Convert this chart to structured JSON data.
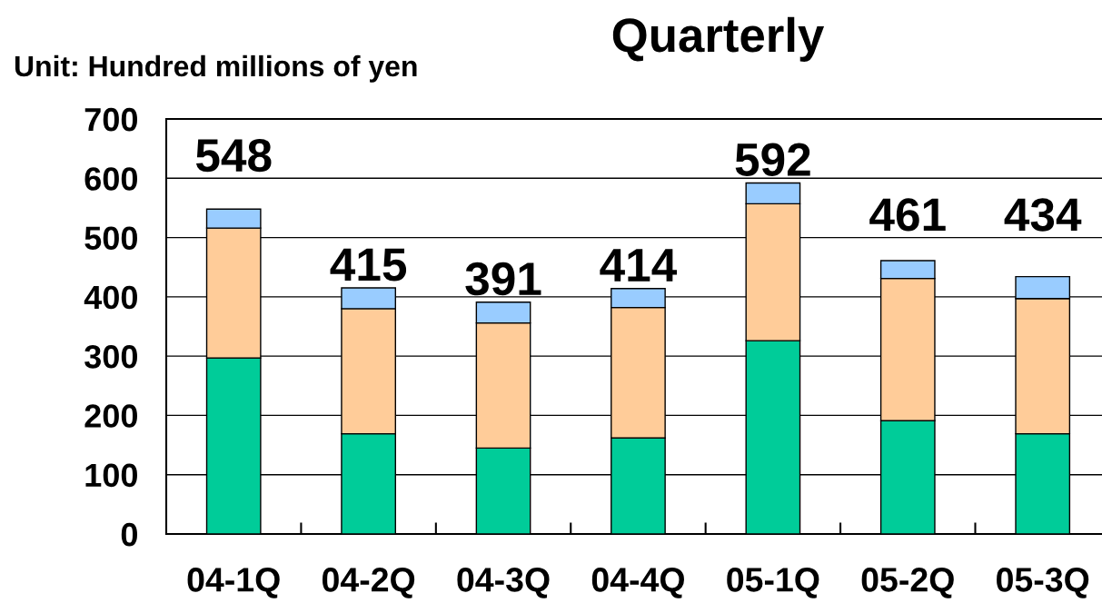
{
  "chart_data": {
    "type": "bar",
    "title": "Quarterly",
    "ylabel": "Unit: Hundred millions of yen",
    "categories": [
      "04-1Q",
      "04-2Q",
      "04-3Q",
      "04-4Q",
      "05-1Q",
      "05-2Q",
      "05-3Q"
    ],
    "stacked": true,
    "series": [
      {
        "color": "#00cc99",
        "values": [
          297,
          169,
          145,
          162,
          326,
          191,
          169
        ]
      },
      {
        "color": "#ffcc99",
        "values": [
          219,
          211,
          211,
          220,
          231,
          240,
          228
        ]
      },
      {
        "color": "#99ccff",
        "values": [
          32,
          35,
          35,
          32,
          35,
          30,
          37
        ]
      }
    ],
    "totals": [
      "548",
      "415",
      "391",
      "414",
      "592",
      "461",
      "434"
    ],
    "ylim": [
      0,
      700
    ],
    "yticks": [
      0,
      100,
      200,
      300,
      400,
      500,
      600,
      700
    ],
    "grid": "y"
  }
}
